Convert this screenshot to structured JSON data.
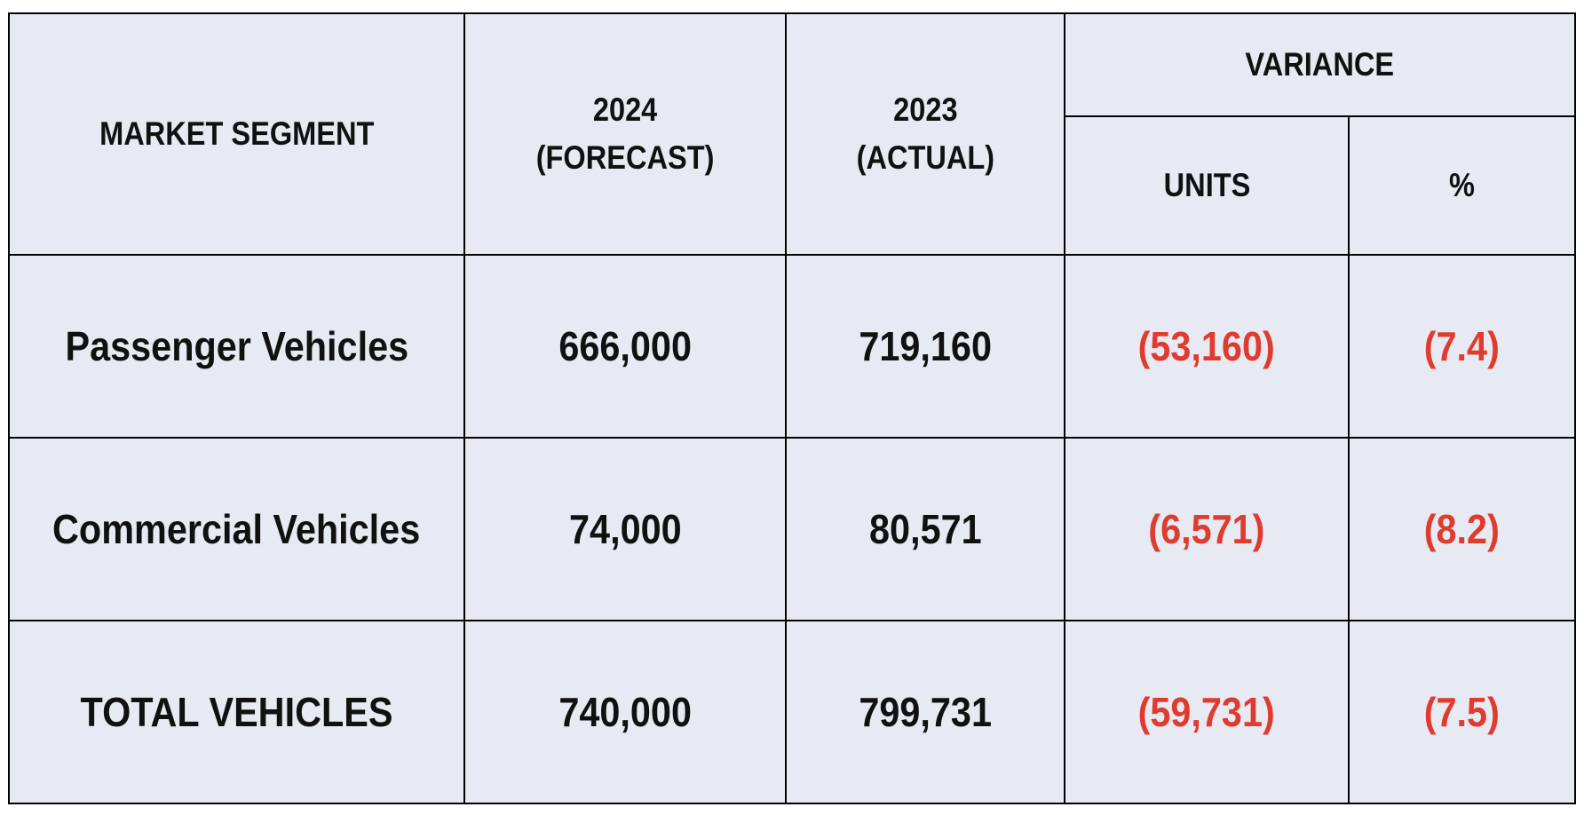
{
  "table": {
    "headers": {
      "segment": "MARKET SEGMENT",
      "forecast_year": "2024",
      "forecast_label": "(FORECAST)",
      "actual_year": "2023",
      "actual_label": "(ACTUAL)",
      "variance": "VARIANCE",
      "units": "UNITS",
      "percent": "%"
    },
    "rows": [
      {
        "segment": "Passenger Vehicles",
        "forecast": "666,000",
        "actual": "719,160",
        "var_units": "(53,160)",
        "var_pct": "(7.4)"
      },
      {
        "segment": "Commercial Vehicles",
        "forecast": "74,000",
        "actual": "80,571",
        "var_units": "(6,571)",
        "var_pct": "(8.2)"
      },
      {
        "segment": "TOTAL VEHICLES",
        "forecast": "740,000",
        "actual": "799,731",
        "var_units": "(59,731)",
        "var_pct": "(7.5)"
      }
    ],
    "colors": {
      "background": "#e8eaf3",
      "border": "#000000",
      "text": "#111111",
      "negative": "#e03b2f"
    }
  }
}
